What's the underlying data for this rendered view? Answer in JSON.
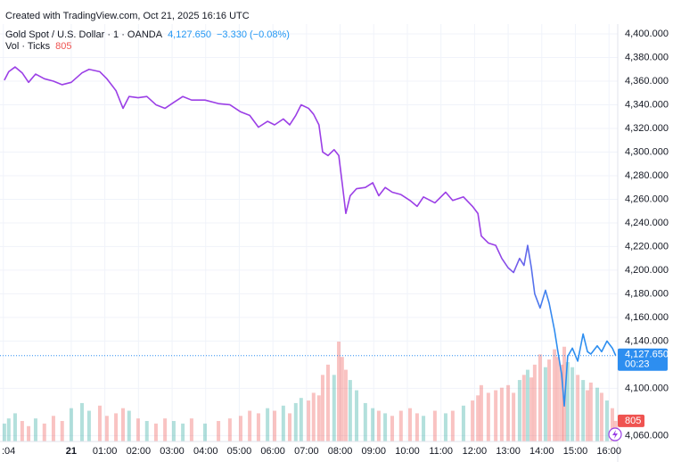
{
  "chart_data": {
    "type": "line",
    "credit": "Created with TradingView.com, Oct 21, 2025 16:16 UTC",
    "last_price_label": "4,127.650",
    "change_label": "−3.330 (−0.08%)",
    "countdown": "00:23",
    "x": [
      -1.99,
      -1.86,
      -1.67,
      -1.46,
      -1.27,
      -1.06,
      -0.8,
      -0.53,
      -0.27,
      0,
      0.32,
      0.53,
      0.85,
      1.06,
      1.33,
      1.54,
      1.72,
      1.99,
      2.25,
      2.52,
      2.79,
      3.05,
      3.32,
      3.58,
      3.98,
      4.38,
      4.72,
      5.04,
      5.31,
      5.57,
      5.84,
      6.05,
      6.31,
      6.5,
      6.68,
      6.84,
      7.06,
      7.21,
      7.37,
      7.48,
      7.64,
      7.82,
      7.96,
      8.06,
      8.17,
      8.3,
      8.49,
      8.75,
      8.97,
      9.15,
      9.34,
      9.55,
      9.81,
      10.08,
      10.29,
      10.48,
      10.82,
      11.14,
      11.35,
      11.67,
      11.94,
      12.1,
      12.2,
      12.41,
      12.63,
      12.81,
      13.0,
      13.16,
      13.34,
      13.47,
      13.58,
      13.69,
      13.79,
      13.95,
      14.11,
      14.22,
      14.38,
      14.48,
      14.59,
      14.67,
      14.77,
      14.91,
      15.07,
      15.23,
      15.36,
      15.46,
      15.65,
      15.78,
      15.94,
      16.1,
      16.2
    ],
    "series": [
      {
        "name": "Gold Spot / U.S. Dollar · 1 · OANDA",
        "colors": [
          "#9b3fe6",
          "#2d8ef0"
        ],
        "values": [
          4360.8,
          4368,
          4372,
          4367,
          4359,
          4366,
          4362,
          4360,
          4357,
          4359,
          4367,
          4370,
          4368,
          4362,
          4352,
          4337,
          4347,
          4346,
          4347,
          4340,
          4337,
          4342,
          4347,
          4344,
          4344,
          4341,
          4340,
          4334,
          4331,
          4321,
          4326,
          4323,
          4328,
          4323,
          4331,
          4340,
          4337,
          4332,
          4323,
          4300,
          4297,
          4302,
          4297,
          4274,
          4248,
          4263,
          4269,
          4270,
          4274,
          4263,
          4270,
          4266,
          4264,
          4259,
          4254,
          4262,
          4257,
          4266,
          4259,
          4262,
          4254,
          4248,
          4229,
          4223,
          4221,
          4210,
          4202,
          4198,
          4210,
          4204,
          4221,
          4202,
          4180,
          4168,
          4183,
          4172,
          4149,
          4131,
          4112,
          4085,
          4127,
          4134,
          4123,
          4146,
          4131,
          4129,
          4136,
          4131,
          4140,
          4134,
          4127.65
        ]
      },
      {
        "name": "Vol · Ticks",
        "type": "volume",
        "up_color": "rgba(38,166,154,0.35)",
        "down_color": "rgba(239,83,80,0.35)",
        "values": [
          700,
          900,
          1100,
          800,
          600,
          900,
          700,
          1000,
          800,
          1300,
          1500,
          1200,
          1400,
          1000,
          1100,
          1300,
          1200,
          900,
          800,
          700,
          900,
          800,
          700,
          900,
          700,
          800,
          900,
          1000,
          1200,
          1100,
          1300,
          1200,
          1400,
          1100,
          1500,
          1700,
          1600,
          1900,
          1800,
          2600,
          3000,
          2600,
          3900,
          3300,
          2800,
          2400,
          2000,
          1500,
          1300,
          1200,
          1100,
          1000,
          1200,
          1300,
          1100,
          1000,
          1200,
          1100,
          1200,
          1400,
          1600,
          1800,
          2200,
          1900,
          2000,
          2100,
          2200,
          1900,
          2400,
          2600,
          2800,
          2500,
          3000,
          3400,
          2900,
          3200,
          3600,
          3300,
          3000,
          3700,
          3100,
          2900,
          2600,
          2400,
          2000,
          2300,
          2100,
          1900,
          1600,
          1300,
          805
        ]
      }
    ],
    "xlim": [
      -2.12,
      16.26
    ],
    "ylim": [
      4055,
      4408.3
    ],
    "xticks": [
      {
        "value": -2.02,
        "label": ":04"
      },
      {
        "value": 0,
        "label": "21"
      },
      {
        "value": 1,
        "label": "01:00"
      },
      {
        "value": 2,
        "label": "02:00"
      },
      {
        "value": 3,
        "label": "03:00"
      },
      {
        "value": 4,
        "label": "04:00"
      },
      {
        "value": 5,
        "label": "05:00"
      },
      {
        "value": 6,
        "label": "06:00"
      },
      {
        "value": 7,
        "label": "07:00"
      },
      {
        "value": 8,
        "label": "08:00"
      },
      {
        "value": 9,
        "label": "09:00"
      },
      {
        "value": 10,
        "label": "10:00"
      },
      {
        "value": 11,
        "label": "11:00"
      },
      {
        "value": 12,
        "label": "12:00"
      },
      {
        "value": 13,
        "label": "13:00"
      },
      {
        "value": 14,
        "label": "14:00"
      },
      {
        "value": 15,
        "label": "15:00"
      },
      {
        "value": 16,
        "label": "16:00"
      }
    ],
    "yticks": [
      {
        "value": 4400,
        "label": "4,400.000"
      },
      {
        "value": 4380,
        "label": "4,380.000"
      },
      {
        "value": 4360,
        "label": "4,360.000"
      },
      {
        "value": 4340,
        "label": "4,340.000"
      },
      {
        "value": 4320,
        "label": "4,320.000"
      },
      {
        "value": 4300,
        "label": "4,300.000"
      },
      {
        "value": 4280,
        "label": "4,280.000"
      },
      {
        "value": 4260,
        "label": "4,260.000"
      },
      {
        "value": 4240,
        "label": "4,240.000"
      },
      {
        "value": 4220,
        "label": "4,220.000"
      },
      {
        "value": 4200,
        "label": "4,200.000"
      },
      {
        "value": 4180,
        "label": "4,180.000"
      },
      {
        "value": 4160,
        "label": "4,160.000"
      },
      {
        "value": 4140,
        "label": "4,140.000"
      },
      {
        "value": 4100,
        "label": "4,100.000"
      },
      {
        "value": 4060,
        "label": "4,060.000"
      }
    ],
    "grid": true
  }
}
